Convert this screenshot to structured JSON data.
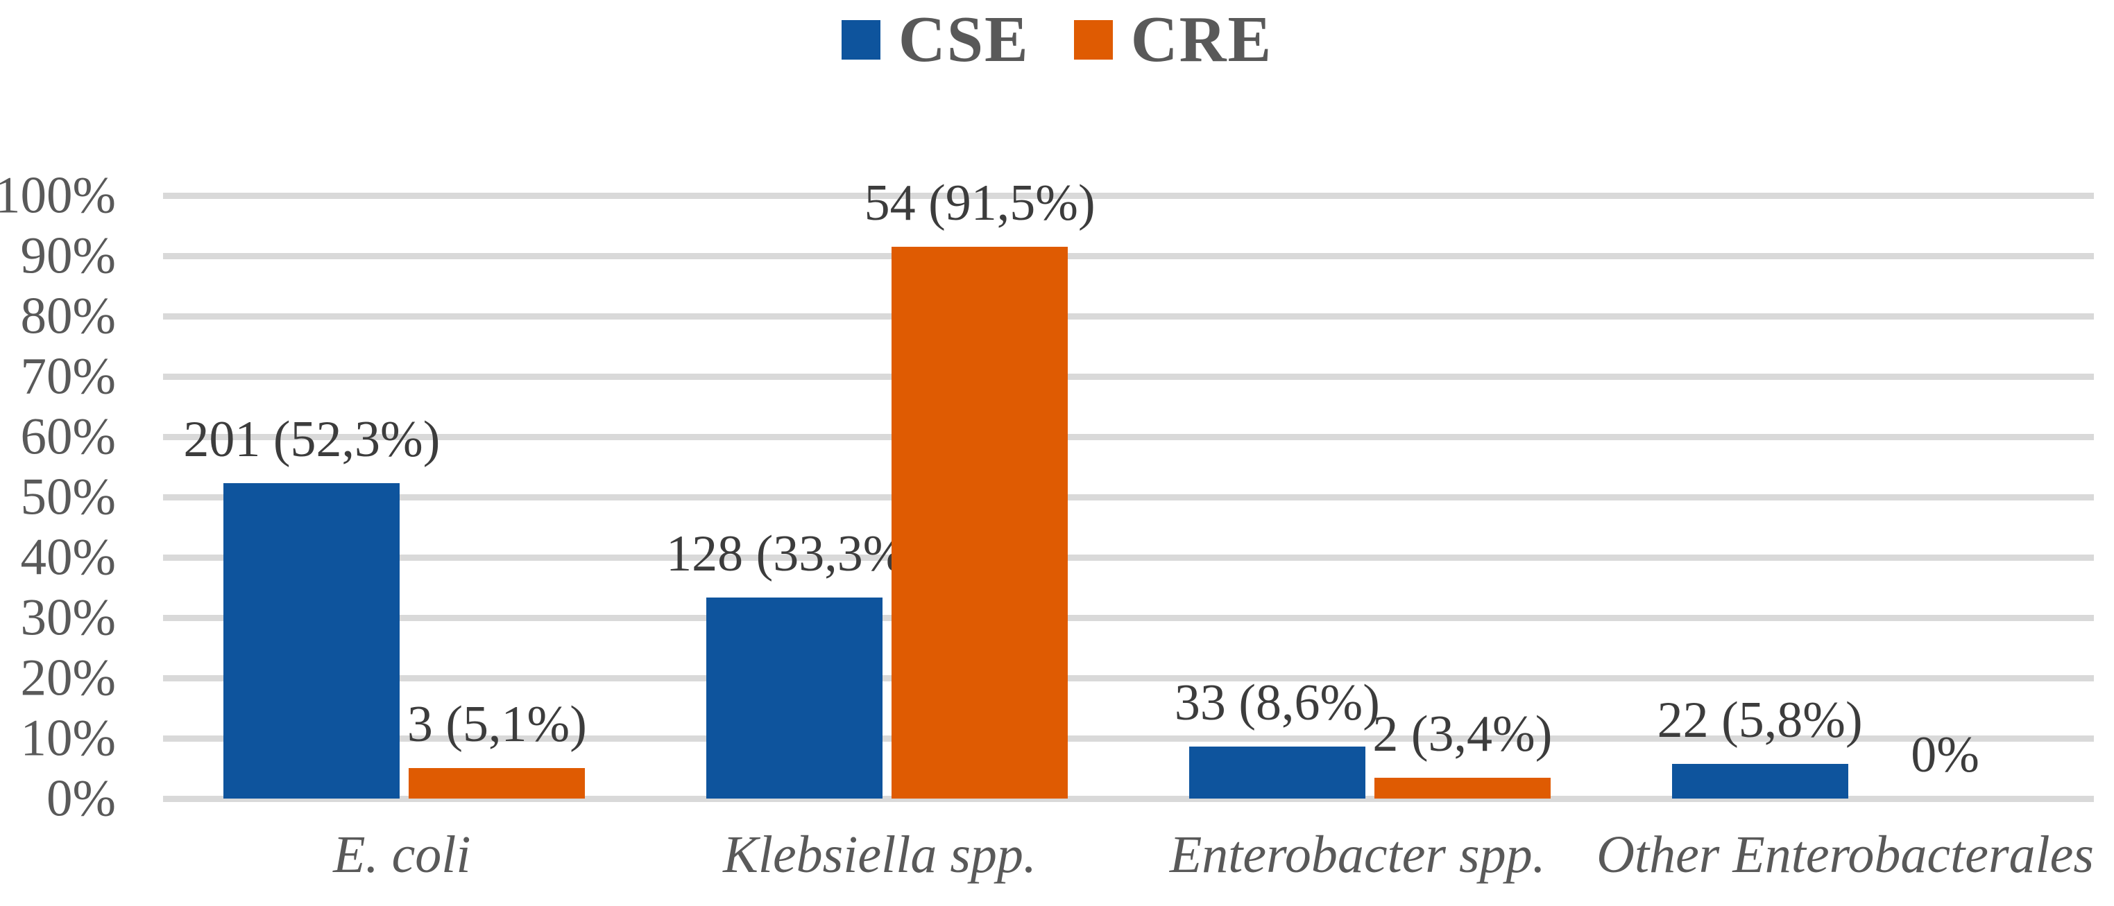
{
  "chart_data": {
    "type": "bar",
    "title": "",
    "categories": [
      "E. coli",
      "Klebsiella spp.",
      "Enterobacter spp.",
      "Other Enterobacterales"
    ],
    "series": [
      {
        "name": "CSE",
        "color": "#0E549D",
        "counts": [
          201,
          128,
          33,
          22
        ],
        "values": [
          52.3,
          33.3,
          8.6,
          5.8
        ],
        "data_labels": [
          "201 (52,3%)",
          "128 (33,3%)",
          "33 (8,6%)",
          "22 (5,8%)"
        ]
      },
      {
        "name": "CRE",
        "color": "#DF5B02",
        "counts": [
          3,
          54,
          2,
          0
        ],
        "values": [
          5.1,
          91.5,
          3.4,
          0
        ],
        "data_labels": [
          "3 (5,1%)",
          "54 (91,5%)",
          "2 (3,4%)",
          "0%"
        ]
      }
    ],
    "xlabel": "",
    "ylabel": "",
    "ylim": [
      0,
      100
    ],
    "yticks": [
      "0%",
      "10%",
      "20%",
      "30%",
      "40%",
      "50%",
      "60%",
      "70%",
      "80%",
      "90%",
      "100%"
    ],
    "grid": true,
    "gridline_color": "#D9D9D9",
    "axis_text_color": "#595959",
    "data_label_color": "#3C3C3C",
    "legend_position": "top-center"
  }
}
